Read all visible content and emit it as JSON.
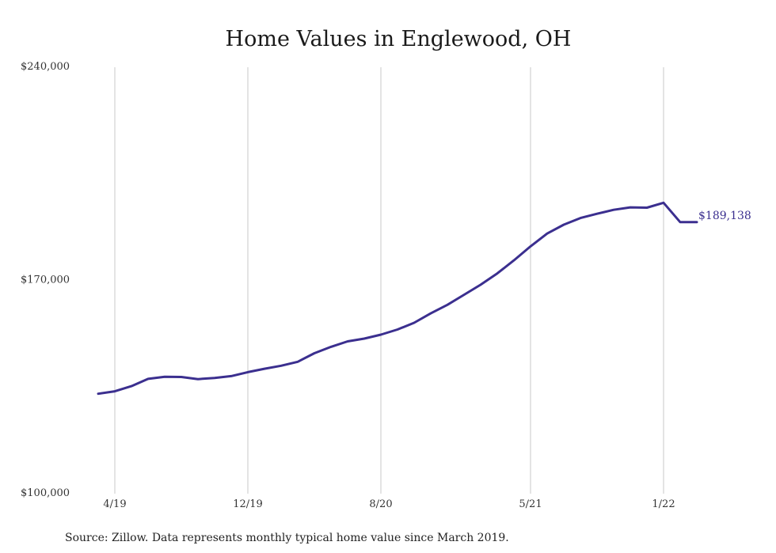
{
  "chart_data": {
    "type": "line",
    "title": "Home Values in Englewood, OH",
    "xlabel": "",
    "ylabel": "",
    "y_ticks": [
      "$240,000",
      "$170,000",
      "$100,000"
    ],
    "y_tick_values": [
      240000,
      170000,
      100000
    ],
    "ylim": [
      100000,
      240000
    ],
    "x_ticks": [
      "4/19",
      "12/19",
      "8/20",
      "5/21",
      "1/22"
    ],
    "x_tick_dates": [
      "2019-04",
      "2019-12",
      "2020-08",
      "2021-05",
      "2022-01"
    ],
    "grid": "vertical",
    "series": [
      {
        "color": "#3b2f8f",
        "x": [
          "2019-03",
          "2019-04",
          "2019-05",
          "2019-06",
          "2019-07",
          "2019-08",
          "2019-09",
          "2019-10",
          "2019-11",
          "2019-12",
          "2020-01",
          "2020-02",
          "2020-03",
          "2020-04",
          "2020-05",
          "2020-06",
          "2020-07",
          "2020-08",
          "2020-09",
          "2020-10",
          "2020-11",
          "2020-12",
          "2021-01",
          "2021-02",
          "2021-03",
          "2021-04",
          "2021-05",
          "2021-06",
          "2021-07",
          "2021-08",
          "2021-09",
          "2021-10",
          "2021-11",
          "2021-12",
          "2022-01",
          "2022-02",
          "2022-03"
        ],
        "values": [
          132800,
          133600,
          135300,
          137700,
          138400,
          138300,
          137600,
          138000,
          138600,
          139900,
          141000,
          142000,
          143300,
          146100,
          148200,
          150000,
          150900,
          152200,
          153900,
          156100,
          159200,
          162000,
          165300,
          168600,
          172300,
          176600,
          181200,
          185400,
          188300,
          190500,
          191900,
          193200,
          194000,
          193900,
          195500,
          189138,
          189138
        ]
      }
    ],
    "end_label": "$189,138",
    "source": "Source: Zillow. Data represents monthly typical home value since March 2019."
  }
}
